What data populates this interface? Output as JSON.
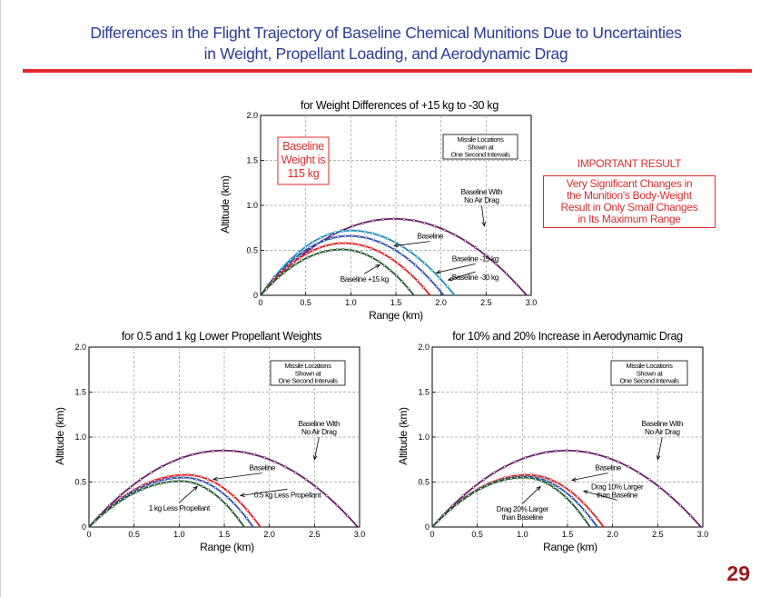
{
  "slide": {
    "title_line1": "Differences in the Flight Trajectory of Baseline Chemical Munitions Due to Uncertainties",
    "title_line2": "in Weight, Propellant Loading, and Aerodynamic Drag",
    "page_number": "29",
    "colors": {
      "title": "#2b3b9a",
      "rule": "#e02a2a",
      "accent": "#e02a2a",
      "page_number": "#9a1a1a"
    }
  },
  "important": {
    "heading": "IMPORTANT RESULT",
    "lines": [
      "Very Significant Changes in",
      "the Munition's Body-Weight",
      "Result in Only Small Changes",
      "in Its Maximum Range"
    ]
  },
  "chart_data": [
    {
      "id": "weight",
      "type": "line",
      "title": "for Weight Differences of +15 kg to -30 kg",
      "xlabel": "Range (km)",
      "ylabel": "Altitude (km)",
      "xlim": [
        0,
        3.0
      ],
      "ylim": [
        0,
        2.0
      ],
      "xticks": [
        "0",
        "0.5",
        "1.0",
        "1.5",
        "2.0",
        "2.5",
        "3.0"
      ],
      "yticks": [
        "0",
        "0.5",
        "1.0",
        "1.5",
        "2.0"
      ],
      "grid": true,
      "info_box": [
        "Missile Locations",
        "Shown at",
        "One Second Intervals"
      ],
      "callout": {
        "lines": [
          "Baseline",
          "Weight is",
          "115 kg"
        ],
        "color": "#e02a2a"
      },
      "series": [
        {
          "name": "Baseline With No Air Drag",
          "color": "#6a1b6a",
          "range": 2.95,
          "apex_x": 1.48,
          "apex_y": 0.85
        },
        {
          "name": "Baseline -30 kg",
          "color": "#1f8fb8",
          "range": 2.15,
          "apex_x": 1.0,
          "apex_y": 0.72
        },
        {
          "name": "Baseline -15 kg",
          "color": "#2e4fae",
          "range": 2.03,
          "apex_x": 0.98,
          "apex_y": 0.66
        },
        {
          "name": "Baseline",
          "color": "#e02020",
          "range": 1.88,
          "apex_x": 0.93,
          "apex_y": 0.58
        },
        {
          "name": "Baseline +15 kg",
          "color": "#1f5a2a",
          "range": 1.7,
          "apex_x": 0.9,
          "apex_y": 0.51
        }
      ],
      "labels": [
        {
          "lines": [
            "Baseline With",
            "No Air Drag"
          ],
          "at": [
            2.45,
            1.12
          ],
          "to": [
            2.48,
            0.77
          ]
        },
        {
          "lines": [
            "Baseline"
          ],
          "at": [
            1.88,
            0.63
          ],
          "to": [
            1.48,
            0.55
          ]
        },
        {
          "lines": [
            "Baseline -15 kg"
          ],
          "at": [
            2.38,
            0.38
          ],
          "to": [
            1.95,
            0.25
          ]
        },
        {
          "lines": [
            "Baseline -30 kg"
          ],
          "at": [
            2.38,
            0.17
          ],
          "to": [
            2.08,
            0.17
          ]
        },
        {
          "lines": [
            "Baseline +15 kg"
          ],
          "at": [
            1.15,
            0.15
          ],
          "to": [
            1.32,
            0.34
          ]
        }
      ]
    },
    {
      "id": "propellant",
      "type": "line",
      "title": "for 0.5 and 1 kg Lower Propellant Weights",
      "xlabel": "Range (km)",
      "ylabel": "Altitude (km)",
      "xlim": [
        0,
        3.0
      ],
      "ylim": [
        0,
        2.0
      ],
      "xticks": [
        "0",
        "0.5",
        "1.0",
        "1.5",
        "2.0",
        "2.5",
        "3.0"
      ],
      "yticks": [
        "0",
        "0.5",
        "1.0",
        "1.5",
        "2.0"
      ],
      "grid": true,
      "info_box": [
        "Missile Locations",
        "Shown at",
        "One Second Intervals"
      ],
      "series": [
        {
          "name": "Baseline With No Air Drag",
          "color": "#6a1b6a",
          "range": 2.98,
          "apex_x": 1.49,
          "apex_y": 0.85
        },
        {
          "name": "Baseline",
          "color": "#e02020",
          "range": 1.9,
          "apex_x": 1.08,
          "apex_y": 0.58
        },
        {
          "name": "0.5 kg Less Propellant",
          "color": "#2e4fae",
          "range": 1.82,
          "apex_x": 1.05,
          "apex_y": 0.55
        },
        {
          "name": "1 kg Less Propellant",
          "color": "#1f5a2a",
          "range": 1.72,
          "apex_x": 1.02,
          "apex_y": 0.51
        }
      ],
      "labels": [
        {
          "lines": [
            "Baseline With",
            "No Air Drag"
          ],
          "at": [
            2.55,
            1.12
          ],
          "to": [
            2.5,
            0.75
          ]
        },
        {
          "lines": [
            "Baseline"
          ],
          "at": [
            1.92,
            0.63
          ],
          "to": [
            1.38,
            0.53
          ]
        },
        {
          "lines": [
            "0.5 kg Less Propellant"
          ],
          "at": [
            2.2,
            0.33
          ],
          "to": [
            1.68,
            0.35
          ]
        },
        {
          "lines": [
            "1 kg Less Propellant"
          ],
          "at": [
            1.0,
            0.18
          ],
          "to": [
            1.2,
            0.45
          ]
        }
      ]
    },
    {
      "id": "drag",
      "type": "line",
      "title": "for 10% and 20% Increase in Aerodynamic Drag",
      "xlabel": "Range (km)",
      "ylabel": "Altitude (km)",
      "xlim": [
        0,
        3.0
      ],
      "ylim": [
        0,
        2.0
      ],
      "xticks": [
        "0",
        "0.5",
        "1.0",
        "1.5",
        "2.0",
        "2.5",
        "3.0"
      ],
      "yticks": [
        "0",
        "0.5",
        "1.0",
        "1.5",
        "2.0"
      ],
      "grid": true,
      "info_box": [
        "Missile Locations",
        "Shown at",
        "One Second Intervals"
      ],
      "series": [
        {
          "name": "Baseline With No Air Drag",
          "color": "#6a1b6a",
          "range": 2.98,
          "apex_x": 1.49,
          "apex_y": 0.85
        },
        {
          "name": "Baseline",
          "color": "#e02020",
          "range": 1.9,
          "apex_x": 1.06,
          "apex_y": 0.58
        },
        {
          "name": "Drag 10% Larger than Baseline",
          "color": "#2e4fae",
          "range": 1.83,
          "apex_x": 1.04,
          "apex_y": 0.56
        },
        {
          "name": "Drag 20% Larger than Baseline",
          "color": "#1f5a2a",
          "range": 1.75,
          "apex_x": 1.02,
          "apex_y": 0.55
        }
      ],
      "labels": [
        {
          "lines": [
            "Baseline With",
            "No Air Drag"
          ],
          "at": [
            2.55,
            1.12
          ],
          "to": [
            2.5,
            0.75
          ]
        },
        {
          "lines": [
            "Baseline"
          ],
          "at": [
            1.95,
            0.63
          ],
          "to": [
            1.55,
            0.52
          ]
        },
        {
          "lines": [
            "Drag 10% Larger",
            "than Baseline"
          ],
          "at": [
            2.05,
            0.42
          ],
          "to": [
            1.68,
            0.4
          ]
        },
        {
          "lines": [
            "Drag 20% Larger",
            "than Baseline"
          ],
          "at": [
            1.0,
            0.17
          ],
          "to": [
            1.2,
            0.45
          ]
        }
      ]
    }
  ]
}
